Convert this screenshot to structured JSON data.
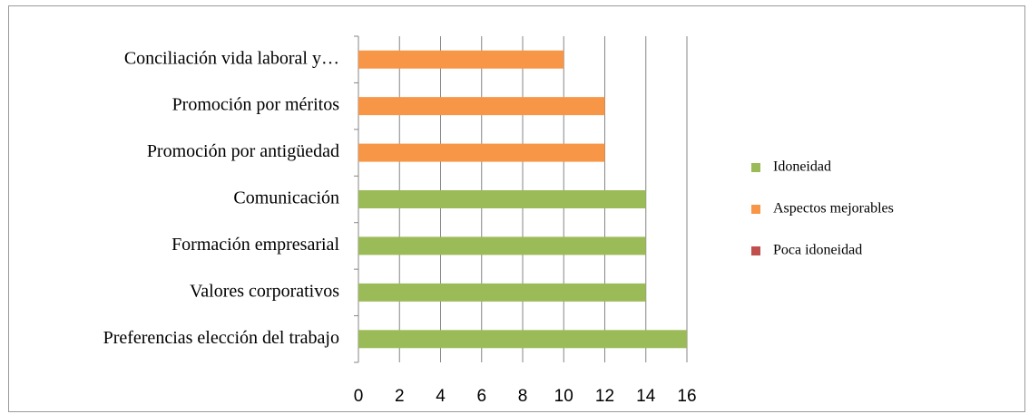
{
  "chart_data": {
    "type": "bar",
    "orientation": "horizontal",
    "categories": [
      "Preferencias elección del trabajo",
      "Valores corporativos",
      "Formación empresarial",
      "Comunicación",
      "Promoción por antigüedad",
      "Promoción por méritos",
      "Conciliación vida laboral y…"
    ],
    "values": [
      16,
      14,
      14,
      14,
      12,
      12,
      10
    ],
    "bar_series": [
      "Idoneidad",
      "Idoneidad",
      "Idoneidad",
      "Idoneidad",
      "Aspectos mejorables",
      "Aspectos mejorables",
      "Aspectos mejorables"
    ],
    "series": [
      {
        "name": "Idoneidad",
        "color": "#9bbb59"
      },
      {
        "name": "Aspectos mejorables",
        "color": "#f79646"
      },
      {
        "name": "Poca idoneidad",
        "color": "#c0504d"
      }
    ],
    "xlim": [
      0,
      16
    ],
    "xticks": [
      "0",
      "2",
      "4",
      "6",
      "8",
      "10",
      "12",
      "14",
      "16"
    ],
    "grid": "vertical",
    "legend": "right",
    "title": "",
    "xlabel": "",
    "ylabel": ""
  }
}
